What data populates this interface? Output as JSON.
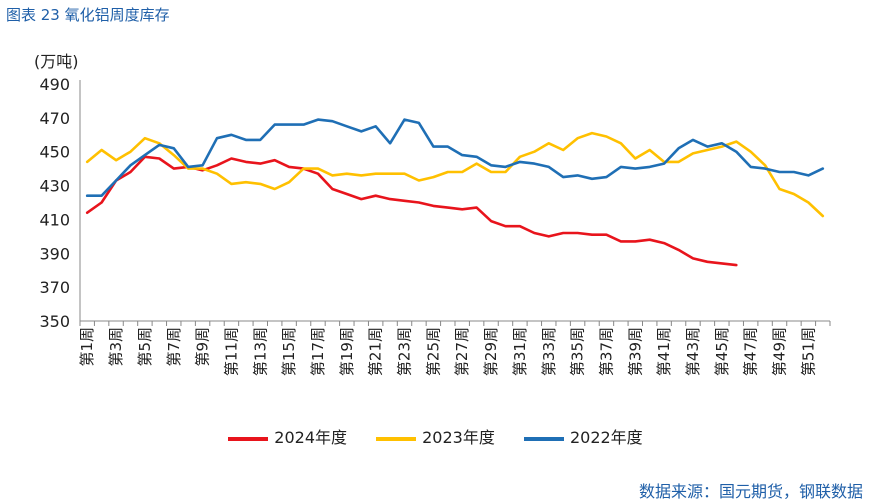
{
  "header": {
    "title": "图表 23  氧化铝周度库存",
    "unit": "(万吨)"
  },
  "footer": {
    "source": "数据来源：国元期货，钢联数据"
  },
  "chart_data": {
    "type": "line",
    "title": "图表 23  氧化铝周度库存",
    "ylabel": "(万吨)",
    "ylim": [
      350,
      490
    ],
    "yticks": [
      350,
      370,
      390,
      410,
      430,
      450,
      470,
      490
    ],
    "categories": [
      "第1周",
      "第2周",
      "第3周",
      "第4周",
      "第5周",
      "第6周",
      "第7周",
      "第8周",
      "第9周",
      "第10周",
      "第11周",
      "第12周",
      "第13周",
      "第14周",
      "第15周",
      "第16周",
      "第17周",
      "第18周",
      "第19周",
      "第20周",
      "第21周",
      "第22周",
      "第23周",
      "第24周",
      "第25周",
      "第26周",
      "第27周",
      "第28周",
      "第29周",
      "第30周",
      "第31周",
      "第32周",
      "第33周",
      "第34周",
      "第35周",
      "第36周",
      "第37周",
      "第38周",
      "第39周",
      "第40周",
      "第41周",
      "第42周",
      "第43周",
      "第44周",
      "第45周",
      "第46周",
      "第47周",
      "第48周",
      "第49周",
      "第50周",
      "第51周",
      "第52周"
    ],
    "xtick_labels": [
      "第1周",
      "第3周",
      "第5周",
      "第7周",
      "第9周",
      "第11周",
      "第13周",
      "第15周",
      "第17周",
      "第19周",
      "第21周",
      "第23周",
      "第25周",
      "第27周",
      "第29周",
      "第31周",
      "第33周",
      "第35周",
      "第37周",
      "第39周",
      "第41周",
      "第43周",
      "第45周",
      "第47周",
      "第49周",
      "第51周"
    ],
    "legend": "bottom",
    "series": [
      {
        "name": "2024年度",
        "color": "#e8141c",
        "values": [
          414,
          420,
          433,
          438,
          447,
          446,
          440,
          441,
          439,
          442,
          446,
          444,
          443,
          445,
          441,
          440,
          437,
          428,
          425,
          422,
          424,
          422,
          421,
          420,
          418,
          417,
          416,
          417,
          409,
          406,
          406,
          402,
          400,
          402,
          402,
          401,
          401,
          397,
          397,
          398,
          396,
          392,
          387,
          385,
          384,
          383,
          null,
          null,
          null,
          null,
          null,
          null
        ]
      },
      {
        "name": "2023年度",
        "color": "#ffc000",
        "values": [
          444,
          451,
          445,
          450,
          458,
          455,
          448,
          440,
          440,
          437,
          431,
          432,
          431,
          428,
          432,
          440,
          440,
          436,
          437,
          436,
          437,
          437,
          437,
          433,
          435,
          438,
          438,
          443,
          438,
          438,
          447,
          450,
          455,
          451,
          458,
          461,
          459,
          455,
          446,
          451,
          444,
          444,
          449,
          451,
          453,
          456,
          450,
          442,
          428,
          425,
          420,
          412
        ]
      },
      {
        "name": "2022年度",
        "color": "#1f6fb5",
        "values": [
          424,
          424,
          433,
          442,
          448,
          454,
          452,
          441,
          442,
          458,
          460,
          457,
          457,
          466,
          466,
          466,
          469,
          468,
          465,
          462,
          465,
          455,
          469,
          467,
          453,
          453,
          448,
          447,
          442,
          441,
          444,
          443,
          441,
          435,
          436,
          434,
          435,
          441,
          440,
          441,
          443,
          452,
          457,
          453,
          455,
          450,
          441,
          440,
          438,
          438,
          436,
          440
        ]
      }
    ]
  }
}
